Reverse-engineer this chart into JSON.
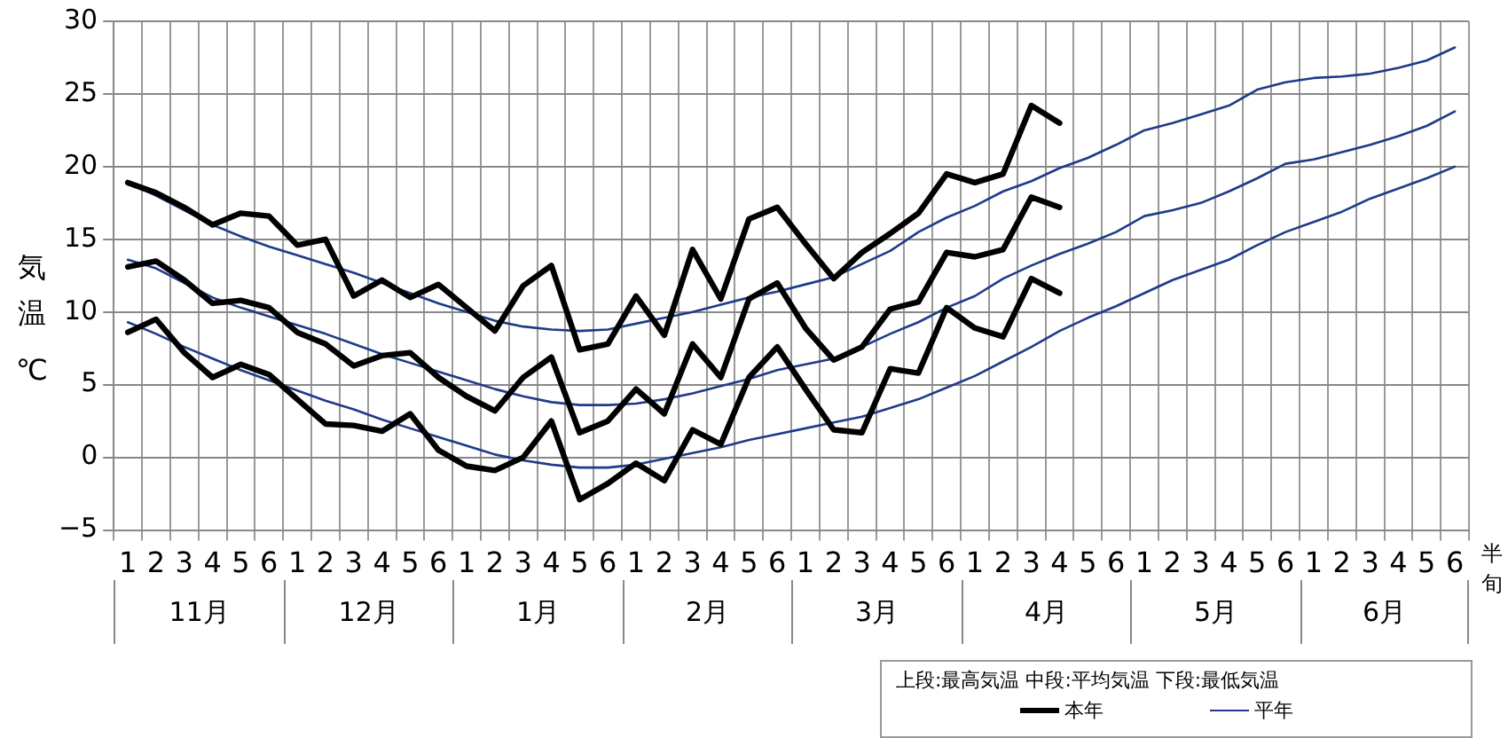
{
  "chart_data": {
    "type": "line",
    "ylabel": "気温℃",
    "xlabel": "半旬",
    "legend_title": "上段:最高気温 中段:平均気温 下段:最低気温",
    "legend": "bottom right",
    "grid": true,
    "marker": "none",
    "line_style": "solid",
    "categories": [
      "1",
      "2",
      "3",
      "4",
      "5",
      "6",
      "1",
      "2",
      "3",
      "4",
      "5",
      "6",
      "1",
      "2",
      "3",
      "4",
      "5",
      "6",
      "1",
      "2",
      "3",
      "4",
      "5",
      "6",
      "1",
      "2",
      "3",
      "4",
      "5",
      "6",
      "1",
      "2",
      "3",
      "4",
      "5",
      "6",
      "1",
      "2",
      "3",
      "4",
      "5",
      "6",
      "1",
      "2",
      "3",
      "4",
      "5",
      "6"
    ],
    "annotations": [
      "11月",
      "12月",
      "1月",
      "2月",
      "3月",
      "4月",
      "5月",
      "6月"
    ],
    "ylim": [
      -5,
      30
    ],
    "yticks": [
      {
        "value": -5,
        "label": "−5"
      },
      0,
      5,
      10,
      15,
      20,
      25,
      30
    ],
    "series": [
      {
        "name": "本年",
        "color": "#000000",
        "values": [
          18.9,
          18.2,
          17.2,
          16.0,
          16.8,
          16.6,
          14.6,
          15.0,
          11.1,
          12.2,
          11.0,
          11.9,
          10.3,
          8.7,
          11.8,
          13.2,
          7.4,
          7.8,
          11.1,
          8.4,
          14.3,
          10.9,
          16.4,
          17.2,
          14.7,
          12.3,
          14.1,
          15.4,
          16.8,
          19.5,
          18.9,
          19.5,
          24.2,
          23.0,
          null,
          null,
          null,
          null,
          null,
          null,
          null,
          null,
          null,
          null,
          null,
          null,
          null,
          null
        ]
      },
      {
        "color": "#000000",
        "values": [
          13.1,
          13.5,
          12.2,
          10.6,
          10.8,
          10.3,
          8.6,
          7.8,
          6.3,
          7.0,
          7.2,
          5.5,
          4.2,
          3.2,
          5.5,
          6.9,
          1.7,
          2.5,
          4.7,
          3.0,
          7.8,
          5.5,
          10.9,
          12.0,
          8.9,
          6.7,
          7.6,
          10.2,
          10.7,
          14.1,
          13.8,
          14.3,
          17.9,
          17.2,
          null,
          null,
          null,
          null,
          null,
          null,
          null,
          null,
          null,
          null,
          null,
          null,
          null,
          null
        ]
      },
      {
        "color": "#000000",
        "values": [
          8.6,
          9.5,
          7.2,
          5.5,
          6.4,
          5.7,
          4.0,
          2.3,
          2.2,
          1.8,
          3.0,
          0.5,
          -0.6,
          -0.9,
          0.0,
          2.5,
          -2.9,
          -1.8,
          -0.4,
          -1.6,
          1.9,
          0.9,
          5.5,
          7.6,
          4.7,
          1.9,
          1.7,
          6.1,
          5.8,
          10.3,
          8.9,
          8.3,
          12.3,
          11.3,
          null,
          null,
          null,
          null,
          null,
          null,
          null,
          null,
          null,
          null,
          null,
          null,
          null,
          null
        ]
      },
      {
        "name": "平年",
        "color": "#1f3a8a",
        "values": [
          18.9,
          18.0,
          17.0,
          16.0,
          15.2,
          14.5,
          13.9,
          13.3,
          12.7,
          12.0,
          11.3,
          10.6,
          10.0,
          9.4,
          9.0,
          8.8,
          8.7,
          8.8,
          9.2,
          9.6,
          10.0,
          10.5,
          11.0,
          11.4,
          11.9,
          12.4,
          13.3,
          14.2,
          15.5,
          16.5,
          17.3,
          18.3,
          19.0,
          19.9,
          20.6,
          21.5,
          22.5,
          23.0,
          23.6,
          24.2,
          25.3,
          25.8,
          26.1,
          26.2,
          26.4,
          26.8,
          27.3,
          28.2
        ]
      },
      {
        "color": "#1f3a8a",
        "values": [
          13.6,
          13.0,
          12.0,
          11.0,
          10.3,
          9.7,
          9.1,
          8.5,
          7.8,
          7.1,
          6.5,
          5.9,
          5.3,
          4.7,
          4.2,
          3.8,
          3.6,
          3.6,
          3.7,
          4.0,
          4.4,
          4.9,
          5.4,
          6.0,
          6.4,
          6.8,
          7.6,
          8.5,
          9.3,
          10.3,
          11.1,
          12.3,
          13.2,
          14.0,
          14.7,
          15.5,
          16.6,
          17.0,
          17.5,
          18.3,
          19.2,
          20.2,
          20.5,
          21.0,
          21.5,
          22.1,
          22.8,
          23.8
        ]
      },
      {
        "color": "#1f3a8a",
        "values": [
          9.3,
          8.5,
          7.6,
          6.8,
          6.0,
          5.3,
          4.6,
          3.9,
          3.3,
          2.6,
          2.0,
          1.4,
          0.8,
          0.2,
          -0.2,
          -0.5,
          -0.7,
          -0.7,
          -0.5,
          -0.1,
          0.3,
          0.7,
          1.2,
          1.6,
          2.0,
          2.4,
          2.8,
          3.4,
          4.0,
          4.8,
          5.6,
          6.6,
          7.6,
          8.7,
          9.6,
          10.4,
          11.3,
          12.2,
          12.9,
          13.6,
          14.6,
          15.5,
          16.2,
          16.9,
          17.8,
          18.5,
          19.2,
          20.0
        ]
      }
    ]
  }
}
